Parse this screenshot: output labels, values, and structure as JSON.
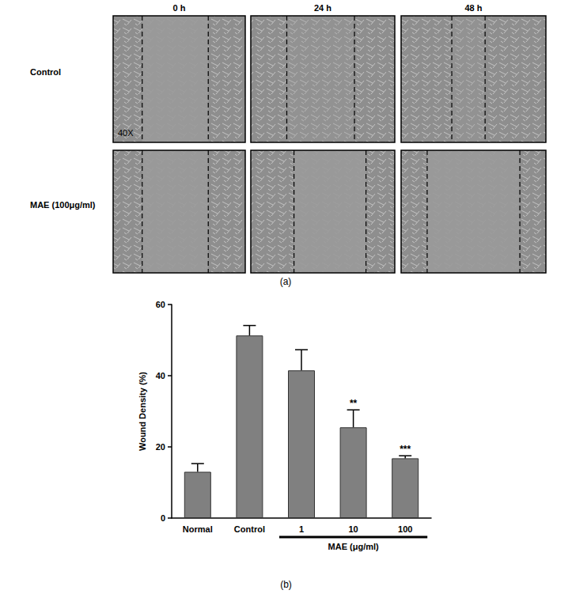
{
  "chart_data": {
    "type": "bar",
    "categories": [
      "Normal",
      "Control",
      "1",
      "10",
      "100"
    ],
    "values": [
      13.0,
      51.3,
      41.5,
      25.5,
      16.8
    ],
    "errors": [
      2.3,
      2.8,
      5.8,
      4.9,
      0.7
    ],
    "significance": [
      null,
      null,
      null,
      "**",
      "***"
    ],
    "group_label": {
      "label": "MAE (μg/ml)",
      "categories": [
        "1",
        "10",
        "100"
      ]
    },
    "ylabel": "Wound Density (%)",
    "ylim": [
      0,
      60
    ],
    "yticks": [
      0,
      20,
      40,
      60
    ],
    "color": "#808080",
    "grid": false,
    "panel_label": "(b)"
  },
  "image_panel": {
    "panel_label": "(a)",
    "columns": [
      "0 h",
      "24 h",
      "48 h"
    ],
    "rows": [
      "Control",
      "MAE (100μg/ml)"
    ],
    "magnification": "40X"
  }
}
